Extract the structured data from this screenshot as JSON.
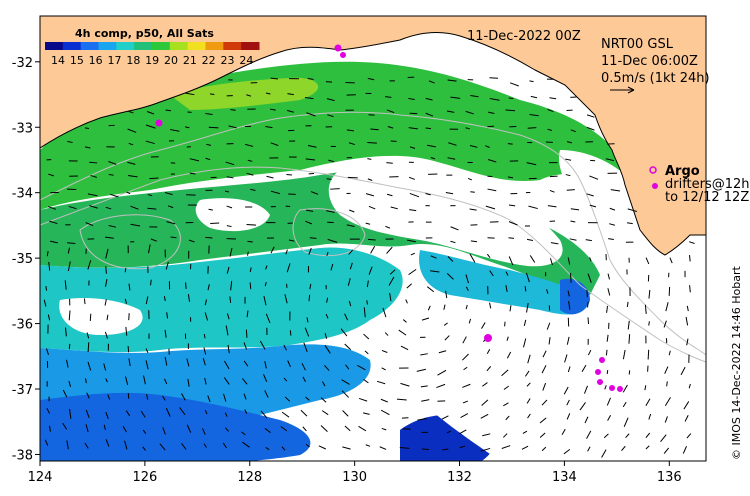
{
  "map": {
    "date_label": "11-Dec-2022 00Z",
    "product_label": "NRT00 GSL",
    "time_label": "11-Dec 06:00Z",
    "scale_label": "0.5m/s (1kt 24h)",
    "legend": {
      "title": "4h comp, p50, All Sats",
      "ticks": [
        "14",
        "15",
        "16",
        "17",
        "18",
        "19",
        "20",
        "21",
        "22",
        "23",
        "24"
      ],
      "colors": [
        "#08088a",
        "#0a2fd0",
        "#1a6ff0",
        "#1aa6ee",
        "#20d0c8",
        "#21c07a",
        "#2cc83a",
        "#a6e01e",
        "#f0e020",
        "#f09a10",
        "#d03a08",
        "#a01010"
      ]
    },
    "argo_label": "Argo",
    "drifters_line1": "drifters@12h",
    "drifters_line2": "to 12/12 12Z",
    "credit": "© IMOS 14-Dec-2022 14:46 Hobart",
    "axes": {
      "x_ticks": [
        "124",
        "126",
        "128",
        "130",
        "132",
        "134",
        "136"
      ],
      "y_ticks": [
        "-32",
        "-33",
        "-34",
        "-35",
        "-36",
        "-37",
        "-38"
      ],
      "lon_range": [
        124,
        136.7
      ],
      "lat_range": [
        -38.1,
        -31.3
      ]
    },
    "colors": {
      "land": "#fdc997",
      "coast": "#000000",
      "isobath": "#bfbfbf",
      "markers": "#e000e0"
    }
  }
}
